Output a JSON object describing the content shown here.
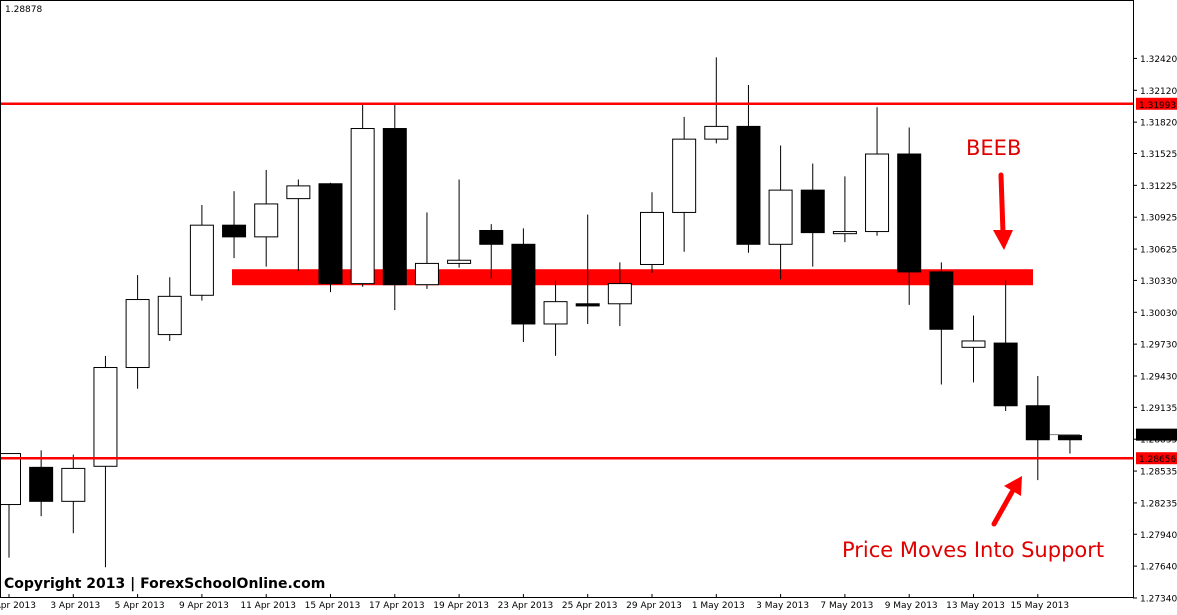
{
  "chart_data": {
    "type": "candlestick",
    "header_price": "1.28878",
    "ylim": [
      1.2734,
      1.3297
    ],
    "y_ticks": [
      "1.32420",
      "1.32120",
      "1.31820",
      "1.31525",
      "1.31225",
      "1.30925",
      "1.30625",
      "1.30330",
      "1.30030",
      "1.29730",
      "1.29430",
      "1.29135",
      "1.28835",
      "1.28535",
      "1.28235",
      "1.27940",
      "1.27640",
      "1.27340"
    ],
    "x_ticks": [
      "1 Apr 2013",
      "3 Apr 2013",
      "5 Apr 2013",
      "9 Apr 2013",
      "11 Apr 2013",
      "15 Apr 2013",
      "17 Apr 2013",
      "19 Apr 2013",
      "23 Apr 2013",
      "25 Apr 2013",
      "29 Apr 2013",
      "1 May 2013",
      "3 May 2013",
      "7 May 2013",
      "9 May 2013",
      "13 May 2013",
      "15 May 2013"
    ],
    "candles": [
      {
        "o": 1.2822,
        "h": 1.287,
        "l": 1.2772,
        "c": 1.287
      },
      {
        "o": 1.2857,
        "h": 1.2873,
        "l": 1.2811,
        "c": 1.2825
      },
      {
        "o": 1.2825,
        "h": 1.2869,
        "l": 1.2795,
        "c": 1.2856
      },
      {
        "o": 1.2858,
        "h": 1.2962,
        "l": 1.2763,
        "c": 1.2951
      },
      {
        "o": 1.2951,
        "h": 1.3038,
        "l": 1.2931,
        "c": 1.3015
      },
      {
        "o": 1.2982,
        "h": 1.3036,
        "l": 1.2976,
        "c": 1.3018
      },
      {
        "o": 1.3019,
        "h": 1.3104,
        "l": 1.3014,
        "c": 1.3085
      },
      {
        "o": 1.3085,
        "h": 1.3117,
        "l": 1.3054,
        "c": 1.3074
      },
      {
        "o": 1.3074,
        "h": 1.3137,
        "l": 1.3046,
        "c": 1.3105
      },
      {
        "o": 1.311,
        "h": 1.3128,
        "l": 1.3042,
        "c": 1.3122
      },
      {
        "o": 1.3124,
        "h": 1.3125,
        "l": 1.3022,
        "c": 1.303
      },
      {
        "o": 1.303,
        "h": 1.32,
        "l": 1.3027,
        "c": 1.3176
      },
      {
        "o": 1.3176,
        "h": 1.32,
        "l": 1.3005,
        "c": 1.3029
      },
      {
        "o": 1.3029,
        "h": 1.3097,
        "l": 1.3025,
        "c": 1.3049
      },
      {
        "o": 1.3049,
        "h": 1.3128,
        "l": 1.3045,
        "c": 1.3052
      },
      {
        "o": 1.308,
        "h": 1.3086,
        "l": 1.3035,
        "c": 1.3067
      },
      {
        "o": 1.3067,
        "h": 1.3082,
        "l": 1.2975,
        "c": 1.2992
      },
      {
        "o": 1.2992,
        "h": 1.3033,
        "l": 1.2962,
        "c": 1.3013
      },
      {
        "o": 1.3011,
        "h": 1.3095,
        "l": 1.2992,
        "c": 1.3009
      },
      {
        "o": 1.3011,
        "h": 1.305,
        "l": 1.299,
        "c": 1.303
      },
      {
        "o": 1.3048,
        "h": 1.3116,
        "l": 1.304,
        "c": 1.3097
      },
      {
        "o": 1.3097,
        "h": 1.3187,
        "l": 1.306,
        "c": 1.3166
      },
      {
        "o": 1.3166,
        "h": 1.3243,
        "l": 1.3162,
        "c": 1.3178
      },
      {
        "o": 1.3178,
        "h": 1.3217,
        "l": 1.3059,
        "c": 1.3067
      },
      {
        "o": 1.3067,
        "h": 1.316,
        "l": 1.3034,
        "c": 1.3118
      },
      {
        "o": 1.3118,
        "h": 1.3143,
        "l": 1.3046,
        "c": 1.3078
      },
      {
        "o": 1.3077,
        "h": 1.3131,
        "l": 1.3069,
        "c": 1.3079
      },
      {
        "o": 1.3079,
        "h": 1.3196,
        "l": 1.3075,
        "c": 1.3152
      },
      {
        "o": 1.3152,
        "h": 1.3177,
        "l": 1.301,
        "c": 1.3041
      },
      {
        "o": 1.3041,
        "h": 1.305,
        "l": 1.2935,
        "c": 1.2987
      },
      {
        "o": 1.297,
        "h": 1.3,
        "l": 1.2937,
        "c": 1.2976
      },
      {
        "o": 1.2974,
        "h": 1.3033,
        "l": 1.291,
        "c": 1.2915
      },
      {
        "o": 1.2915,
        "h": 1.2943,
        "l": 1.2845,
        "c": 1.2883
      },
      {
        "o": 1.2887,
        "h": 1.2888,
        "l": 1.287,
        "c": 1.2883
      }
    ],
    "resistance_level": "1.31993",
    "support_level": "1.28656",
    "zone_level": 1.3036,
    "current_price": "1.28878",
    "annotations": {
      "top": "BEEB",
      "bottom": "Price Moves Into Support"
    },
    "colors": {
      "line": "#ff0000",
      "zone": "#ff0000",
      "annotation": "#e00000",
      "bear": "#000000",
      "bull": "#ffffff"
    }
  },
  "footer": {
    "copyright": "Copyright 2013 | ForexSchoolOnline.com"
  }
}
